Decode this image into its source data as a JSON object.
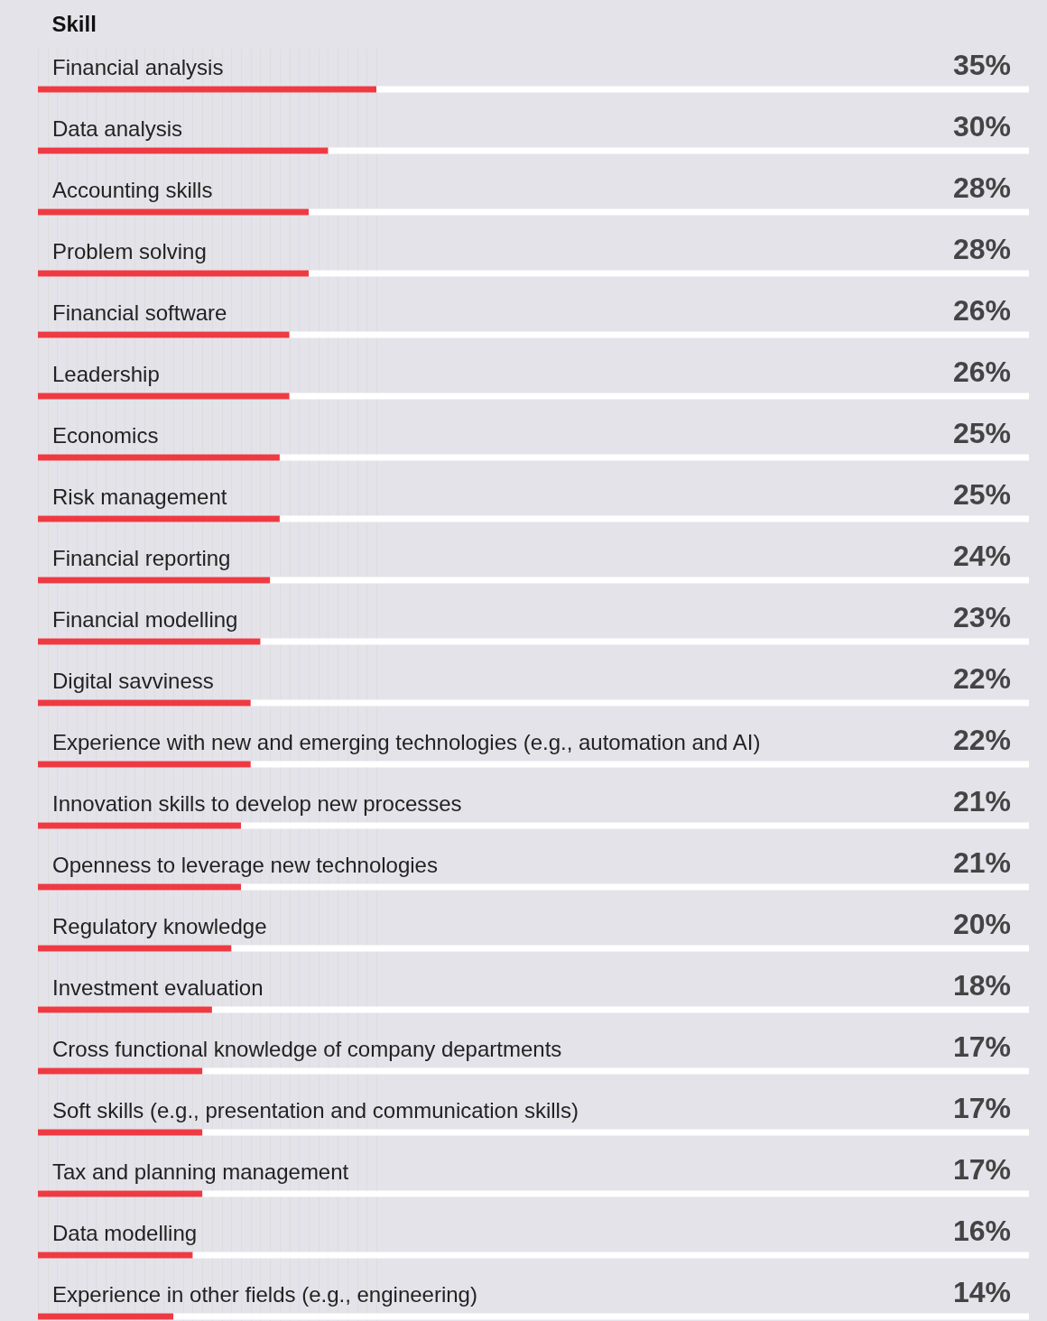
{
  "chart_data": {
    "type": "bar",
    "orientation": "horizontal",
    "ylabel": "Skill",
    "tick_labels": false,
    "color": "#ee3a43",
    "value_labels": [
      "35%",
      "30%",
      "28%",
      "28%",
      "26%",
      "26%",
      "25%",
      "25%",
      "24%",
      "23%",
      "22%",
      "22%",
      "21%",
      "21%",
      "20%",
      "18%",
      "17%",
      "17%",
      "17%",
      "16%",
      "14%"
    ],
    "categories": [
      "Financial analysis",
      "Data analysis",
      "Accounting skills",
      "Problem solving",
      "Financial software",
      "Leadership",
      "Economics",
      "Risk management",
      "Financial reporting",
      "Financial modelling",
      "Digital savviness",
      "Experience with new and emerging technologies (e.g., automation and AI)",
      "Innovation skills to develop new processes",
      "Openness to leverage new technologies",
      "Regulatory knowledge",
      "Investment evaluation",
      "Cross functional knowledge of company departments",
      "Soft skills (e.g., presentation and communication skills)",
      "Tax and planning management",
      "Data modelling",
      "Experience in other fields (e.g., engineering)"
    ],
    "values": [
      35,
      30,
      28,
      28,
      26,
      26,
      25,
      25,
      24,
      23,
      22,
      22,
      21,
      21,
      20,
      18,
      17,
      17,
      17,
      16,
      14
    ]
  }
}
